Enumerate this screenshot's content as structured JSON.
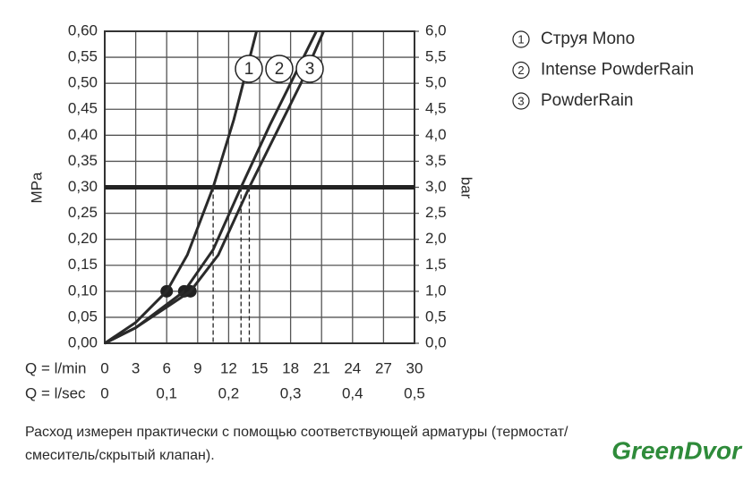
{
  "chart_data": {
    "type": "line",
    "y_label": "MPa",
    "y2_label": "bar",
    "x_label": "Q = l/min",
    "x2_label": "Q = l/sec",
    "xlim": [
      0,
      30
    ],
    "xticks": [
      0,
      3,
      6,
      9,
      12,
      15,
      18,
      21,
      24,
      27,
      30
    ],
    "x2lim": [
      0,
      0.5
    ],
    "x2ticks": [
      {
        "value": 0,
        "label": "0"
      },
      {
        "value": 0.1,
        "label": "0,1"
      },
      {
        "value": 0.2,
        "label": "0,2"
      },
      {
        "value": 0.3,
        "label": "0,3"
      },
      {
        "value": 0.4,
        "label": "0,4"
      },
      {
        "value": 0.5,
        "label": "0,5"
      }
    ],
    "ylim": [
      0,
      0.6
    ],
    "yticks": [
      {
        "value": 0,
        "label": "0,00"
      },
      {
        "value": 0.05,
        "label": "0,05"
      },
      {
        "value": 0.1,
        "label": "0,10"
      },
      {
        "value": 0.15,
        "label": "0,15"
      },
      {
        "value": 0.2,
        "label": "0,20"
      },
      {
        "value": 0.25,
        "label": "0,25"
      },
      {
        "value": 0.3,
        "label": "0,30"
      },
      {
        "value": 0.35,
        "label": "0,35"
      },
      {
        "value": 0.4,
        "label": "0,40"
      },
      {
        "value": 0.45,
        "label": "0,45"
      },
      {
        "value": 0.5,
        "label": "0,50"
      },
      {
        "value": 0.55,
        "label": "0,55"
      },
      {
        "value": 0.6,
        "label": "0,60"
      }
    ],
    "y2lim": [
      0,
      6
    ],
    "y2ticks": [
      {
        "value": 0,
        "label": "0,0"
      },
      {
        "value": 0.5,
        "label": "0,5"
      },
      {
        "value": 1,
        "label": "1,0"
      },
      {
        "value": 1.5,
        "label": "1,5"
      },
      {
        "value": 2,
        "label": "2,0"
      },
      {
        "value": 2.5,
        "label": "2,5"
      },
      {
        "value": 3,
        "label": "3,0"
      },
      {
        "value": 3.5,
        "label": "3,5"
      },
      {
        "value": 4,
        "label": "4,0"
      },
      {
        "value": 4.5,
        "label": "4,5"
      },
      {
        "value": 5,
        "label": "5,0"
      },
      {
        "value": 5.5,
        "label": "5,5"
      },
      {
        "value": 6,
        "label": "6,0"
      }
    ],
    "grid": true,
    "reference_line": 0.3,
    "marker_value": 0.1,
    "series": [
      {
        "name": "Струя Mono",
        "label": "1",
        "color": "#2a2a2a",
        "x": [
          0,
          3,
          6,
          8,
          10.5,
          12.5,
          14.7
        ],
        "values": [
          0,
          0.04,
          0.1,
          0.17,
          0.3,
          0.43,
          0.6
        ]
      },
      {
        "name": "Intense PowderRain",
        "label": "2",
        "color": "#2a2a2a",
        "x": [
          0,
          3,
          7.7,
          10.5,
          13.2,
          16,
          18,
          20.5
        ],
        "values": [
          0,
          0.03,
          0.1,
          0.18,
          0.3,
          0.42,
          0.5,
          0.6
        ]
      },
      {
        "name": "PowderRain",
        "label": "3",
        "color": "#2a2a2a",
        "x": [
          0,
          3,
          8.3,
          11,
          14,
          17,
          19,
          21.2
        ],
        "values": [
          0,
          0.03,
          0.1,
          0.17,
          0.3,
          0.42,
          0.5,
          0.6
        ]
      }
    ],
    "caption_line1": "Расход измерен практически с помощью соответствующей арматуры (термостат/",
    "caption_line2": "смеситель/скрытый клапан).",
    "watermark": "GreenDvor"
  }
}
